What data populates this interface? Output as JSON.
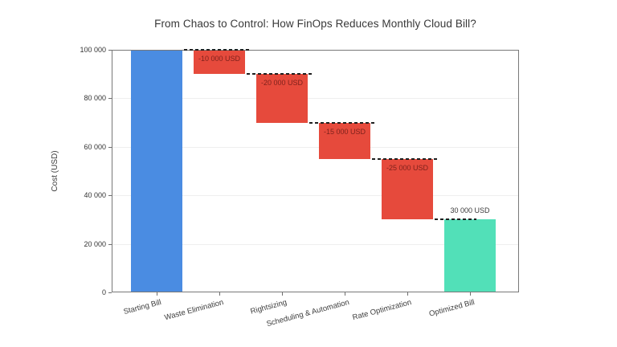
{
  "title": "From Chaos to Control: How FinOps Reduces Monthly Cloud Bill?",
  "chart_data": {
    "type": "bar",
    "subtype": "waterfall",
    "title": "From Chaos to Control: How FinOps Reduces Monthly Cloud Bill?",
    "xlabel": "",
    "ylabel": "Cost (USD)",
    "ylim": [
      0,
      100000
    ],
    "grid": true,
    "legend_position": "none",
    "yticks": {
      "values": [
        0,
        20000,
        40000,
        60000,
        80000,
        100000
      ],
      "labels": [
        "0",
        "20 000",
        "40 000",
        "60 000",
        "80 000",
        "100 000"
      ]
    },
    "categories": [
      "Starting Bill",
      "Waste Elimination",
      "Rightsizing",
      "Scheduling & Automation",
      "Rate Optimization",
      "Optimized Bill"
    ],
    "bars": [
      {
        "category": "Starting Bill",
        "start": 0,
        "end": 100000,
        "value": 100000,
        "role": "start",
        "color": "#4a8ce2",
        "value_label": "",
        "value_label_pos": "none",
        "value_label_color": ""
      },
      {
        "category": "Waste Elimination",
        "start": 100000,
        "end": 90000,
        "value": -10000,
        "role": "decrease",
        "color": "#e64a3c",
        "value_label": "-10 000 USD",
        "value_label_pos": "inside-top",
        "value_label_color": "#7e221c"
      },
      {
        "category": "Rightsizing",
        "start": 90000,
        "end": 70000,
        "value": -20000,
        "role": "decrease",
        "color": "#e64a3c",
        "value_label": "-20 000 USD",
        "value_label_pos": "inside-top",
        "value_label_color": "#7e221c"
      },
      {
        "category": "Scheduling & Automation",
        "start": 70000,
        "end": 55000,
        "value": -15000,
        "role": "decrease",
        "color": "#e64a3c",
        "value_label": "-15 000 USD",
        "value_label_pos": "inside-top",
        "value_label_color": "#7e221c"
      },
      {
        "category": "Rate Optimization",
        "start": 55000,
        "end": 30000,
        "value": -25000,
        "role": "decrease",
        "color": "#e64a3c",
        "value_label": "-25 000 USD",
        "value_label_pos": "inside-top",
        "value_label_color": "#7e221c"
      },
      {
        "category": "Optimized Bill",
        "start": 0,
        "end": 30000,
        "value": 30000,
        "role": "total",
        "color": "#52e0b8",
        "value_label": "30 000 USD",
        "value_label_pos": "above",
        "value_label_color": "#3a3a3a"
      }
    ],
    "connector_style": "dashed",
    "connector_color": "#1f1f1f",
    "colors": {
      "start": "#4a8ce2",
      "decrease": "#e64a3c",
      "total": "#52e0b8"
    }
  }
}
